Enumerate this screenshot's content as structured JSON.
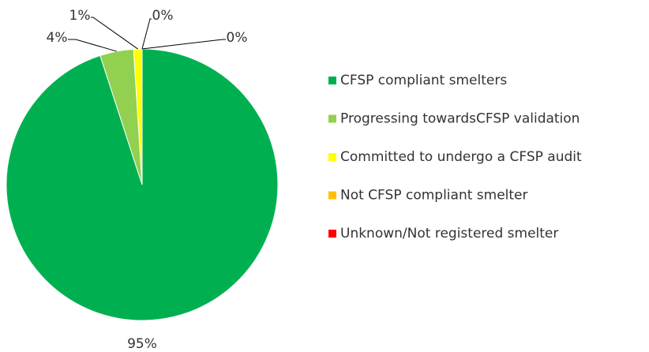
{
  "chart_data": {
    "type": "pie",
    "categories": [
      "CFSP compliant smelters",
      "Progressing towardsCFSP  validation",
      "Committed to undergo a CFSP audit",
      "Not CFSP compliant smelter",
      "Unknown/Not registered smelter"
    ],
    "values": [
      95,
      4,
      1,
      0,
      0
    ],
    "value_labels": [
      "95%",
      "4%",
      "1%",
      "0%",
      "0%"
    ],
    "colors": [
      "#00b050",
      "#92d050",
      "#ffff00",
      "#ffc000",
      "#ff0000"
    ],
    "legend": "right"
  }
}
